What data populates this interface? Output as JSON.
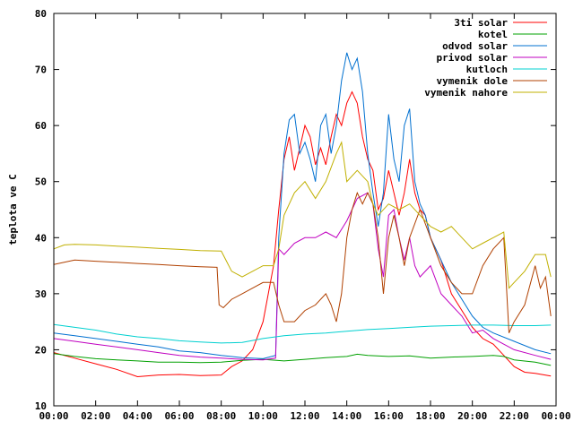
{
  "chart_data": {
    "type": "line",
    "title": "",
    "xlabel": "",
    "ylabel": "teplota ve C",
    "xlim": [
      0,
      24
    ],
    "ylim": [
      10,
      80
    ],
    "x_ticks": [
      {
        "value": 0,
        "label": "00:00"
      },
      {
        "value": 2,
        "label": "02:00"
      },
      {
        "value": 4,
        "label": "04:00"
      },
      {
        "value": 6,
        "label": "06:00"
      },
      {
        "value": 8,
        "label": "08:00"
      },
      {
        "value": 10,
        "label": "10:00"
      },
      {
        "value": 12,
        "label": "12:00"
      },
      {
        "value": 14,
        "label": "14:00"
      },
      {
        "value": 16,
        "label": "16:00"
      },
      {
        "value": 18,
        "label": "18:00"
      },
      {
        "value": 20,
        "label": "20:00"
      },
      {
        "value": 22,
        "label": "22:00"
      },
      {
        "value": 24,
        "label": "00:00"
      }
    ],
    "y_ticks": [
      10,
      20,
      30,
      40,
      50,
      60,
      70,
      80
    ],
    "grid": false,
    "legend_position": "top-right",
    "series": [
      {
        "name": "3ti solar",
        "color": "#ff0000",
        "points": [
          [
            0,
            19.5
          ],
          [
            1,
            18.5
          ],
          [
            2,
            17.5
          ],
          [
            3,
            16.5
          ],
          [
            4,
            15.2
          ],
          [
            5,
            15.5
          ],
          [
            6,
            15.6
          ],
          [
            7,
            15.4
          ],
          [
            8,
            15.5
          ],
          [
            8.5,
            17
          ],
          [
            9,
            18
          ],
          [
            9.5,
            20
          ],
          [
            10,
            25
          ],
          [
            10.5,
            35
          ],
          [
            10.75,
            45
          ],
          [
            11,
            54
          ],
          [
            11.25,
            58
          ],
          [
            11.5,
            52
          ],
          [
            11.75,
            56
          ],
          [
            12,
            60
          ],
          [
            12.25,
            58
          ],
          [
            12.5,
            53
          ],
          [
            12.75,
            56
          ],
          [
            13,
            53
          ],
          [
            13.25,
            58
          ],
          [
            13.5,
            62
          ],
          [
            13.75,
            60
          ],
          [
            14,
            64
          ],
          [
            14.25,
            66
          ],
          [
            14.5,
            64
          ],
          [
            14.75,
            58
          ],
          [
            15,
            54
          ],
          [
            15.25,
            52
          ],
          [
            15.5,
            45
          ],
          [
            15.75,
            47
          ],
          [
            16,
            52
          ],
          [
            16.25,
            48
          ],
          [
            16.5,
            44
          ],
          [
            16.75,
            48
          ],
          [
            17,
            54
          ],
          [
            17.25,
            48
          ],
          [
            17.5,
            45
          ],
          [
            17.75,
            44
          ],
          [
            18,
            40
          ],
          [
            18.5,
            36
          ],
          [
            19,
            30
          ],
          [
            19.5,
            27
          ],
          [
            20,
            24
          ],
          [
            20.5,
            22
          ],
          [
            21,
            21
          ],
          [
            21.5,
            19
          ],
          [
            22,
            17
          ],
          [
            22.5,
            16
          ],
          [
            23,
            15.8
          ],
          [
            23.75,
            15.3
          ]
        ]
      },
      {
        "name": "kotel",
        "color": "#00a000",
        "points": [
          [
            0,
            19.3
          ],
          [
            1,
            18.8
          ],
          [
            2,
            18.4
          ],
          [
            3,
            18.2
          ],
          [
            4,
            18
          ],
          [
            5,
            17.8
          ],
          [
            6,
            17.8
          ],
          [
            7,
            17.7
          ],
          [
            8,
            17.8
          ],
          [
            9,
            18.1
          ],
          [
            10,
            18.3
          ],
          [
            11,
            18
          ],
          [
            12,
            18.3
          ],
          [
            13,
            18.6
          ],
          [
            14,
            18.8
          ],
          [
            14.5,
            19.2
          ],
          [
            15,
            19
          ],
          [
            16,
            18.8
          ],
          [
            17,
            18.9
          ],
          [
            18,
            18.5
          ],
          [
            19,
            18.7
          ],
          [
            20,
            18.8
          ],
          [
            21,
            19
          ],
          [
            21.5,
            18.8
          ],
          [
            22,
            18.2
          ],
          [
            23,
            17.8
          ],
          [
            23.75,
            17.2
          ]
        ]
      },
      {
        "name": "odvod solar",
        "color": "#0070d0",
        "points": [
          [
            0,
            23
          ],
          [
            1,
            22.5
          ],
          [
            2,
            22
          ],
          [
            3,
            21.5
          ],
          [
            4,
            21
          ],
          [
            5,
            20.5
          ],
          [
            6,
            19.8
          ],
          [
            7,
            19.5
          ],
          [
            8,
            19
          ],
          [
            9,
            18.6
          ],
          [
            10,
            18.4
          ],
          [
            10.6,
            19
          ],
          [
            10.75,
            40
          ],
          [
            11,
            55
          ],
          [
            11.25,
            61
          ],
          [
            11.5,
            62
          ],
          [
            11.75,
            55
          ],
          [
            12,
            57
          ],
          [
            12.25,
            54
          ],
          [
            12.5,
            50
          ],
          [
            12.75,
            60
          ],
          [
            13,
            62
          ],
          [
            13.25,
            55
          ],
          [
            13.5,
            60
          ],
          [
            13.75,
            68
          ],
          [
            14,
            73
          ],
          [
            14.25,
            70
          ],
          [
            14.5,
            72
          ],
          [
            14.75,
            66
          ],
          [
            15,
            55
          ],
          [
            15.25,
            48
          ],
          [
            15.5,
            42
          ],
          [
            15.75,
            48
          ],
          [
            16,
            62
          ],
          [
            16.25,
            54
          ],
          [
            16.5,
            50
          ],
          [
            16.75,
            60
          ],
          [
            17,
            63
          ],
          [
            17.25,
            50
          ],
          [
            17.5,
            46
          ],
          [
            17.75,
            44
          ],
          [
            18,
            40
          ],
          [
            18.5,
            36
          ],
          [
            19,
            32
          ],
          [
            19.5,
            29
          ],
          [
            20,
            26
          ],
          [
            20.5,
            24
          ],
          [
            21,
            23
          ],
          [
            22,
            21.5
          ],
          [
            23,
            20
          ],
          [
            23.75,
            19.3
          ]
        ]
      },
      {
        "name": "privod solar",
        "color": "#c000c0",
        "points": [
          [
            0,
            22
          ],
          [
            1,
            21.5
          ],
          [
            2,
            21
          ],
          [
            3,
            20.5
          ],
          [
            4,
            20
          ],
          [
            5,
            19.5
          ],
          [
            6,
            19
          ],
          [
            7,
            18.7
          ],
          [
            8,
            18.5
          ],
          [
            9,
            18.3
          ],
          [
            10,
            18.2
          ],
          [
            10.6,
            18.5
          ],
          [
            10.75,
            38
          ],
          [
            11,
            37
          ],
          [
            11.5,
            39
          ],
          [
            12,
            40
          ],
          [
            12.5,
            40
          ],
          [
            13,
            41
          ],
          [
            13.5,
            40
          ],
          [
            14,
            43
          ],
          [
            14.5,
            47
          ],
          [
            15,
            48
          ],
          [
            15.25,
            46
          ],
          [
            15.5,
            38
          ],
          [
            15.75,
            33
          ],
          [
            16,
            44
          ],
          [
            16.25,
            45
          ],
          [
            16.5,
            40
          ],
          [
            16.75,
            36
          ],
          [
            17,
            40
          ],
          [
            17.25,
            35
          ],
          [
            17.5,
            33
          ],
          [
            18,
            35
          ],
          [
            18.5,
            30
          ],
          [
            19,
            28
          ],
          [
            19.5,
            26
          ],
          [
            20,
            23
          ],
          [
            20.5,
            23.5
          ],
          [
            21,
            22
          ],
          [
            21.5,
            21
          ],
          [
            22,
            20
          ],
          [
            23,
            19
          ],
          [
            23.75,
            18.3
          ]
        ]
      },
      {
        "name": "kutloch",
        "color": "#00d0d0",
        "points": [
          [
            0,
            24.5
          ],
          [
            1,
            24
          ],
          [
            2,
            23.5
          ],
          [
            3,
            22.8
          ],
          [
            4,
            22.3
          ],
          [
            5,
            22
          ],
          [
            6,
            21.6
          ],
          [
            7,
            21.4
          ],
          [
            8,
            21.2
          ],
          [
            9,
            21.3
          ],
          [
            10,
            22
          ],
          [
            11,
            22.5
          ],
          [
            12,
            22.8
          ],
          [
            13,
            23
          ],
          [
            14,
            23.3
          ],
          [
            15,
            23.6
          ],
          [
            16,
            23.8
          ],
          [
            17,
            24
          ],
          [
            18,
            24.2
          ],
          [
            19,
            24.3
          ],
          [
            20,
            24.4
          ],
          [
            21,
            24.4
          ],
          [
            22,
            24.3
          ],
          [
            23,
            24.3
          ],
          [
            23.75,
            24.4
          ]
        ]
      },
      {
        "name": "vymenik dole",
        "color": "#b04000",
        "points": [
          [
            0,
            35.2
          ],
          [
            1,
            36
          ],
          [
            2,
            35.8
          ],
          [
            3,
            35.6
          ],
          [
            4,
            35.4
          ],
          [
            5,
            35.2
          ],
          [
            6,
            35
          ],
          [
            7,
            34.8
          ],
          [
            7.8,
            34.7
          ],
          [
            7.9,
            28
          ],
          [
            8.1,
            27.5
          ],
          [
            8.5,
            29
          ],
          [
            9,
            30
          ],
          [
            9.5,
            31
          ],
          [
            10,
            32
          ],
          [
            10.5,
            32
          ],
          [
            10.75,
            28
          ],
          [
            11,
            25
          ],
          [
            11.5,
            25
          ],
          [
            12,
            27
          ],
          [
            12.5,
            28
          ],
          [
            13,
            30
          ],
          [
            13.25,
            28
          ],
          [
            13.5,
            25
          ],
          [
            13.75,
            30
          ],
          [
            14,
            40
          ],
          [
            14.25,
            45
          ],
          [
            14.5,
            48
          ],
          [
            14.75,
            46
          ],
          [
            15,
            48
          ],
          [
            15.25,
            46
          ],
          [
            15.5,
            40
          ],
          [
            15.75,
            30
          ],
          [
            16,
            40
          ],
          [
            16.25,
            44
          ],
          [
            16.5,
            40
          ],
          [
            16.75,
            35
          ],
          [
            17,
            40
          ],
          [
            17.5,
            45
          ],
          [
            18,
            40
          ],
          [
            18.5,
            35
          ],
          [
            19,
            32
          ],
          [
            19.5,
            30
          ],
          [
            20,
            30
          ],
          [
            20.5,
            35
          ],
          [
            21,
            38
          ],
          [
            21.5,
            40
          ],
          [
            21.75,
            23
          ],
          [
            22,
            25
          ],
          [
            22.5,
            28
          ],
          [
            23,
            35
          ],
          [
            23.25,
            31
          ],
          [
            23.5,
            33
          ],
          [
            23.75,
            26
          ]
        ]
      },
      {
        "name": "vymenik nahore",
        "color": "#c0b000",
        "points": [
          [
            0,
            38
          ],
          [
            0.5,
            38.7
          ],
          [
            1,
            38.8
          ],
          [
            2,
            38.7
          ],
          [
            3,
            38.5
          ],
          [
            4,
            38.3
          ],
          [
            5,
            38.1
          ],
          [
            6,
            37.9
          ],
          [
            7,
            37.7
          ],
          [
            8,
            37.6
          ],
          [
            8.5,
            34
          ],
          [
            9,
            33
          ],
          [
            9.5,
            34
          ],
          [
            10,
            35
          ],
          [
            10.5,
            35
          ],
          [
            10.75,
            38
          ],
          [
            11,
            44
          ],
          [
            11.5,
            48
          ],
          [
            12,
            50
          ],
          [
            12.5,
            47
          ],
          [
            13,
            50
          ],
          [
            13.5,
            55
          ],
          [
            13.75,
            57
          ],
          [
            14,
            50
          ],
          [
            14.5,
            52
          ],
          [
            15,
            50
          ],
          [
            15.25,
            46
          ],
          [
            15.5,
            44
          ],
          [
            16,
            46
          ],
          [
            16.5,
            45
          ],
          [
            17,
            46
          ],
          [
            17.5,
            44
          ],
          [
            18,
            42
          ],
          [
            18.5,
            41
          ],
          [
            19,
            42
          ],
          [
            19.5,
            40
          ],
          [
            20,
            38
          ],
          [
            20.5,
            39
          ],
          [
            21,
            40
          ],
          [
            21.5,
            41
          ],
          [
            21.75,
            31
          ],
          [
            22,
            32
          ],
          [
            22.5,
            34
          ],
          [
            23,
            37
          ],
          [
            23.5,
            37
          ],
          [
            23.75,
            33
          ]
        ]
      }
    ]
  }
}
